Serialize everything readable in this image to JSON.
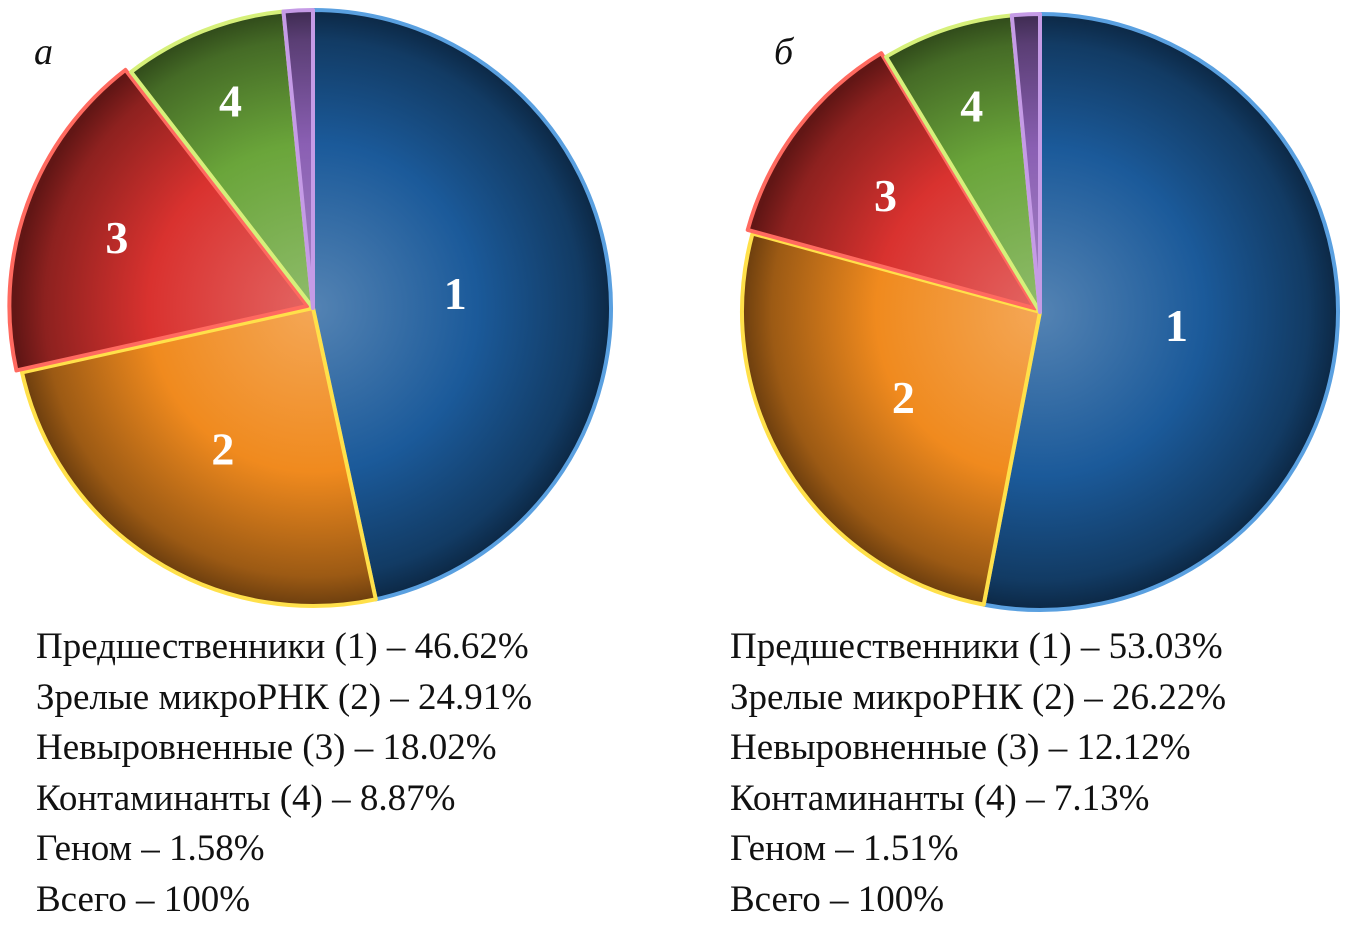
{
  "chart_data": [
    {
      "type": "pie",
      "panel_label": "а",
      "categories": [
        "Предшественники",
        "Зрелые микроРНК",
        "Невыровненные",
        "Контаминанты",
        "Геном"
      ],
      "values": [
        46.62,
        24.91,
        18.02,
        8.87,
        1.58
      ],
      "slice_labels": [
        "1",
        "2",
        "3",
        "4",
        ""
      ],
      "colors": [
        "#1b5a9a",
        "#f08a1e",
        "#d9322f",
        "#6aa53a",
        "#8a5fb3"
      ],
      "legend": [
        "Предшественники (1) – 46.62%",
        "Зрелые микроРНК (2) – 24.91%",
        "Невыровненные (3) – 18.02%",
        "Контаминанты (4) – 8.87%",
        "Геном – 1.58%",
        "Всего – 100%"
      ]
    },
    {
      "type": "pie",
      "panel_label": "б",
      "categories": [
        "Предшественники",
        "Зрелые микроРНК",
        "Невыровненные",
        "Контаминанты",
        "Геном"
      ],
      "values": [
        53.03,
        26.22,
        12.12,
        7.13,
        1.51
      ],
      "slice_labels": [
        "1",
        "2",
        "3",
        "4",
        ""
      ],
      "colors": [
        "#1b5a9a",
        "#f08a1e",
        "#d9322f",
        "#6aa53a",
        "#8a5fb3"
      ],
      "legend": [
        "Предшественники (1) – 53.03%",
        "Зрелые микроРНК (2) – 26.22%",
        "Невыровненные (3) – 12.12%",
        "Контаминанты (4) – 7.13%",
        "Геном – 1.51%",
        "Всего – 100%"
      ]
    }
  ]
}
